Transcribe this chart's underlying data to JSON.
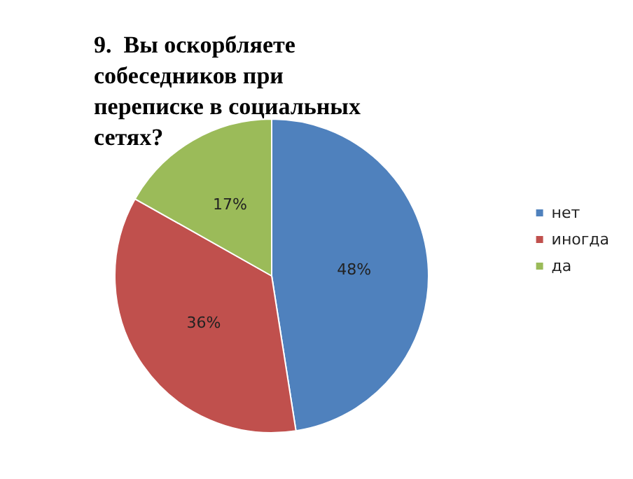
{
  "chart_data": {
    "type": "pie",
    "title": "9.  Вы оскорбляете собеседников при переписке в социальных сетях?",
    "categories": [
      "нет",
      "иногда",
      "да"
    ],
    "values": [
      48,
      36,
      17
    ],
    "value_labels": [
      "48%",
      "36%",
      "17%"
    ],
    "colors": [
      "#4f81bd",
      "#c0504d",
      "#9bbb59"
    ],
    "legend": "right"
  }
}
